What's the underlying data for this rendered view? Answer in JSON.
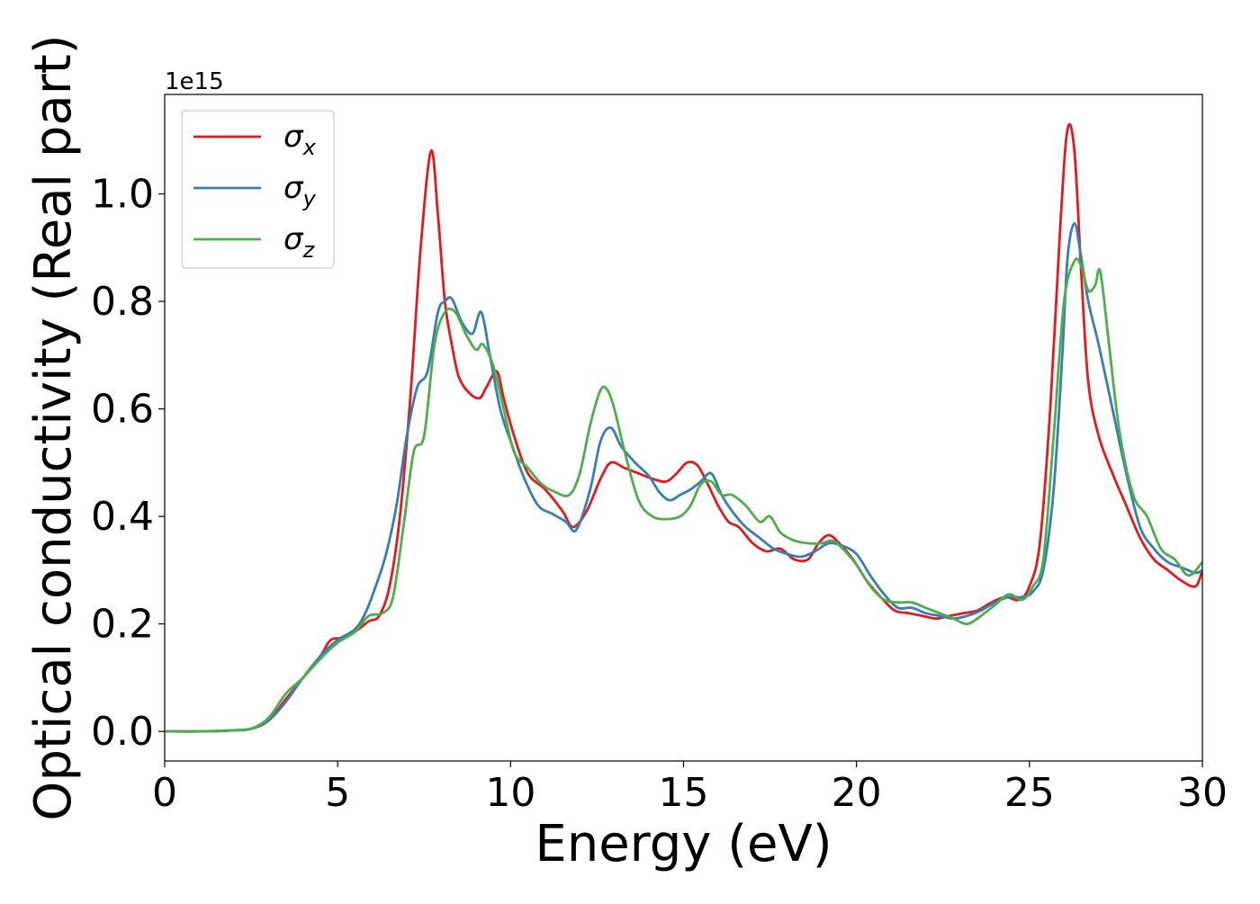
{
  "chart_data": {
    "type": "line",
    "title": "",
    "xlabel": "Energy (eV)",
    "ylabel": "Optical conductivity (Real part)",
    "y_offset_label": "1e15",
    "y_scale": 1000000000000000.0,
    "xlim": [
      0,
      30
    ],
    "ylim": [
      -0.055,
      1.185
    ],
    "x_ticks": [
      0,
      5,
      10,
      15,
      20,
      25,
      30
    ],
    "x_tick_labels": [
      "0",
      "5",
      "10",
      "15",
      "20",
      "25",
      "30"
    ],
    "y_ticks": [
      0.0,
      0.2,
      0.4,
      0.6,
      0.8,
      1.0
    ],
    "y_tick_labels": [
      "0.0",
      "0.2",
      "0.4",
      "0.6",
      "0.8",
      "1.0"
    ],
    "grid": false,
    "legend_position": "top-left",
    "series": [
      {
        "name": "σ",
        "subscript": "x",
        "color": "#e41a1c",
        "x": [
          0,
          1,
          2,
          2.5,
          3,
          3.5,
          4,
          4.5,
          4.8,
          5.2,
          5.6,
          5.9,
          6.2,
          6.5,
          6.8,
          7.1,
          7.4,
          7.7,
          7.9,
          8.1,
          8.3,
          8.5,
          8.8,
          9.1,
          9.3,
          9.6,
          9.8,
          10.1,
          10.5,
          11,
          11.5,
          11.8,
          12.2,
          12.6,
          12.9,
          13.3,
          13.7,
          14.1,
          14.5,
          14.8,
          15.1,
          15.4,
          15.7,
          16,
          16.3,
          16.6,
          17,
          17.4,
          17.8,
          18.2,
          18.6,
          18.9,
          19.2,
          19.5,
          19.9,
          20.3,
          20.7,
          21.1,
          21.5,
          21.9,
          22.3,
          22.7,
          23.1,
          23.5,
          23.9,
          24.3,
          24.7,
          25,
          25.3,
          25.6,
          25.9,
          26.1,
          26.3,
          26.5,
          26.7,
          27,
          27.4,
          27.8,
          28.2,
          28.6,
          29,
          29.4,
          29.8,
          30
        ],
        "values": [
          0,
          0,
          0.002,
          0.005,
          0.02,
          0.06,
          0.1,
          0.14,
          0.17,
          0.175,
          0.19,
          0.205,
          0.215,
          0.27,
          0.4,
          0.62,
          0.9,
          1.08,
          0.96,
          0.8,
          0.72,
          0.66,
          0.63,
          0.62,
          0.64,
          0.67,
          0.62,
          0.55,
          0.48,
          0.45,
          0.41,
          0.38,
          0.41,
          0.47,
          0.5,
          0.49,
          0.48,
          0.47,
          0.465,
          0.48,
          0.5,
          0.495,
          0.46,
          0.42,
          0.39,
          0.38,
          0.35,
          0.335,
          0.34,
          0.32,
          0.32,
          0.35,
          0.365,
          0.35,
          0.32,
          0.28,
          0.25,
          0.225,
          0.22,
          0.215,
          0.21,
          0.215,
          0.22,
          0.225,
          0.24,
          0.25,
          0.245,
          0.27,
          0.35,
          0.6,
          0.95,
          1.12,
          1.08,
          0.85,
          0.65,
          0.55,
          0.48,
          0.42,
          0.36,
          0.32,
          0.3,
          0.28,
          0.27,
          0.3
        ]
      },
      {
        "name": "σ",
        "subscript": "y",
        "color": "#377eb8",
        "x": [
          0,
          1,
          2,
          2.5,
          3,
          3.5,
          4,
          4.5,
          5,
          5.5,
          5.8,
          6.1,
          6.4,
          6.7,
          7,
          7.3,
          7.6,
          7.9,
          8.1,
          8.3,
          8.6,
          8.9,
          9.15,
          9.4,
          9.7,
          10,
          10.4,
          10.8,
          11.2,
          11.6,
          11.9,
          12.3,
          12.6,
          12.9,
          13.2,
          13.6,
          14,
          14.3,
          14.6,
          14.9,
          15.2,
          15.5,
          15.8,
          16.1,
          16.4,
          16.8,
          17.2,
          17.6,
          18,
          18.4,
          18.8,
          19.2,
          19.6,
          20,
          20.4,
          20.8,
          21.2,
          21.6,
          22,
          22.4,
          22.8,
          23.2,
          23.6,
          24,
          24.4,
          24.8,
          25.1,
          25.4,
          25.7,
          25.95,
          26.1,
          26.3,
          26.5,
          26.7,
          27,
          27.4,
          27.8,
          28.2,
          28.6,
          29,
          29.4,
          29.8,
          30
        ],
        "values": [
          0,
          0,
          0.002,
          0.005,
          0.02,
          0.055,
          0.1,
          0.14,
          0.17,
          0.19,
          0.22,
          0.27,
          0.33,
          0.42,
          0.55,
          0.64,
          0.67,
          0.78,
          0.8,
          0.805,
          0.76,
          0.74,
          0.78,
          0.7,
          0.6,
          0.54,
          0.47,
          0.42,
          0.405,
          0.39,
          0.375,
          0.45,
          0.54,
          0.565,
          0.53,
          0.5,
          0.475,
          0.445,
          0.43,
          0.44,
          0.45,
          0.465,
          0.48,
          0.44,
          0.41,
          0.38,
          0.36,
          0.34,
          0.33,
          0.325,
          0.335,
          0.35,
          0.345,
          0.33,
          0.29,
          0.255,
          0.23,
          0.23,
          0.22,
          0.215,
          0.21,
          0.215,
          0.225,
          0.24,
          0.25,
          0.25,
          0.26,
          0.3,
          0.45,
          0.7,
          0.88,
          0.945,
          0.88,
          0.8,
          0.72,
          0.6,
          0.48,
          0.38,
          0.34,
          0.315,
          0.305,
          0.295,
          0.3
        ]
      },
      {
        "name": "σ",
        "subscript": "z",
        "color": "#4daf4a",
        "x": [
          0,
          1,
          2,
          2.5,
          3,
          3.5,
          4,
          4.5,
          5,
          5.5,
          5.9,
          6.3,
          6.6,
          6.9,
          7.2,
          7.5,
          7.8,
          8.1,
          8.4,
          8.7,
          9,
          9.2,
          9.5,
          9.8,
          10.1,
          10.5,
          10.9,
          11.3,
          11.7,
          12,
          12.3,
          12.6,
          12.8,
          13,
          13.3,
          13.7,
          14.1,
          14.5,
          14.9,
          15.2,
          15.5,
          15.8,
          16.1,
          16.4,
          16.8,
          17.2,
          17.5,
          17.8,
          18.2,
          18.6,
          19,
          19.3,
          19.6,
          20,
          20.4,
          20.8,
          21.2,
          21.6,
          22,
          22.4,
          22.8,
          23.2,
          23.6,
          24,
          24.4,
          24.8,
          25.1,
          25.4,
          25.7,
          26,
          26.3,
          26.5,
          26.7,
          26.9,
          27.05,
          27.3,
          27.6,
          28,
          28.4,
          28.8,
          29.2,
          29.6,
          30
        ],
        "values": [
          0,
          0,
          0.002,
          0.005,
          0.025,
          0.07,
          0.1,
          0.135,
          0.165,
          0.185,
          0.215,
          0.22,
          0.25,
          0.38,
          0.52,
          0.55,
          0.72,
          0.78,
          0.78,
          0.74,
          0.71,
          0.72,
          0.68,
          0.6,
          0.52,
          0.49,
          0.46,
          0.445,
          0.44,
          0.48,
          0.57,
          0.635,
          0.635,
          0.6,
          0.52,
          0.43,
          0.4,
          0.395,
          0.4,
          0.42,
          0.46,
          0.465,
          0.44,
          0.44,
          0.42,
          0.39,
          0.4,
          0.37,
          0.355,
          0.35,
          0.35,
          0.355,
          0.34,
          0.31,
          0.27,
          0.245,
          0.24,
          0.24,
          0.23,
          0.22,
          0.21,
          0.2,
          0.215,
          0.235,
          0.255,
          0.245,
          0.27,
          0.32,
          0.55,
          0.8,
          0.875,
          0.865,
          0.82,
          0.83,
          0.855,
          0.72,
          0.56,
          0.44,
          0.4,
          0.34,
          0.32,
          0.29,
          0.315
        ]
      }
    ]
  }
}
